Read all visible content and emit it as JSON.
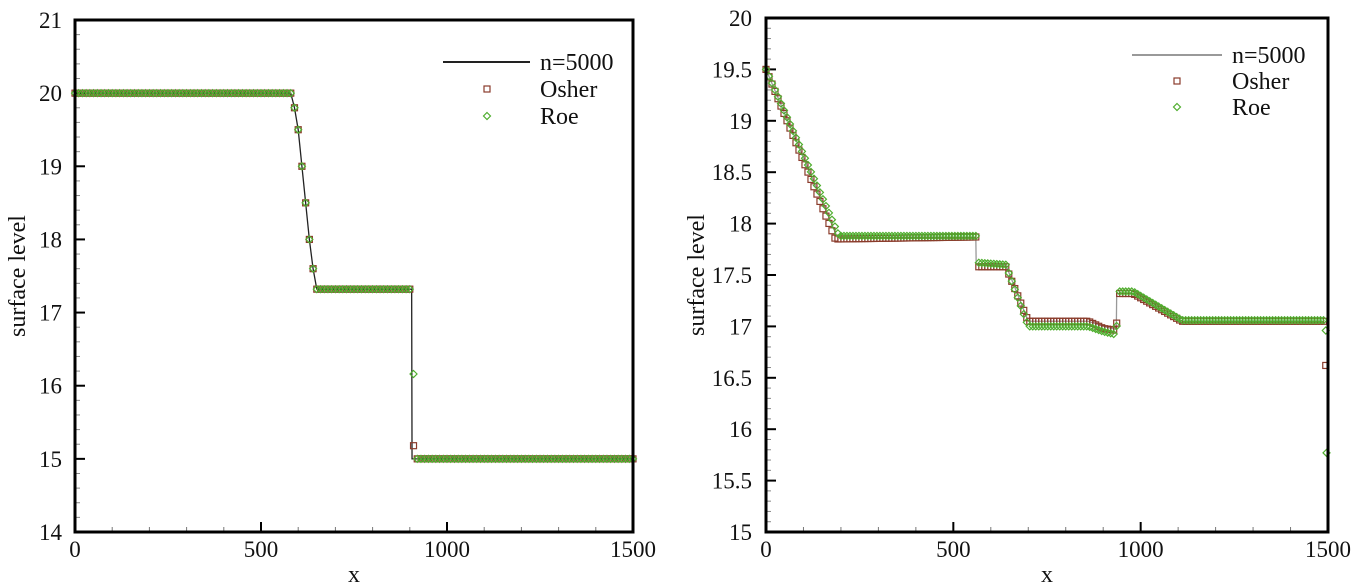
{
  "chart_data": [
    {
      "type": "line",
      "xlabel": "x",
      "ylabel": "surface level",
      "xlim": [
        0,
        1500
      ],
      "ylim": [
        14,
        21
      ],
      "xticks": [
        "0",
        "500",
        "1000",
        "1500"
      ],
      "xtick_values": [
        0,
        500,
        1000,
        1500
      ],
      "yticks": [
        "14",
        "15",
        "16",
        "17",
        "18",
        "19",
        "20",
        "21"
      ],
      "ytick_values": [
        14,
        15,
        16,
        17,
        18,
        19,
        20,
        21
      ],
      "x_minor_step": 100,
      "y_minor_step": 0.2,
      "legend_position": "top-right",
      "line_color": "#222222",
      "marker_spacing": 10,
      "series": [
        {
          "name": "n=5000",
          "kind": "line",
          "color": "#222222",
          "points": [
            [
              0,
              20
            ],
            [
              580,
              20
            ],
            [
              590,
              19.8
            ],
            [
              600,
              19.5
            ],
            [
              610,
              19.0
            ],
            [
              620,
              18.5
            ],
            [
              630,
              18.0
            ],
            [
              640,
              17.6
            ],
            [
              650,
              17.32
            ],
            [
              905,
              17.32
            ],
            [
              906,
              15
            ],
            [
              1500,
              15
            ]
          ]
        },
        {
          "name": "Osher",
          "kind": "square",
          "color": "#8a3b2b",
          "points": [
            [
              0,
              20
            ],
            [
              580,
              20
            ],
            [
              590,
              19.8
            ],
            [
              600,
              19.5
            ],
            [
              610,
              19.0
            ],
            [
              620,
              18.5
            ],
            [
              630,
              18.0
            ],
            [
              640,
              17.6
            ],
            [
              650,
              17.32
            ],
            [
              900,
              17.32
            ],
            [
              905,
              17.18
            ],
            [
              910,
              15.18
            ],
            [
              915,
              15
            ],
            [
              1500,
              15
            ]
          ]
        },
        {
          "name": "Roe",
          "kind": "diamond",
          "color": "#4fae2e",
          "points": [
            [
              0,
              20
            ],
            [
              580,
              20
            ],
            [
              590,
              19.8
            ],
            [
              600,
              19.5
            ],
            [
              610,
              19.0
            ],
            [
              620,
              18.5
            ],
            [
              630,
              18.0
            ],
            [
              640,
              17.6
            ],
            [
              650,
              17.32
            ],
            [
              905,
              17.32
            ],
            [
              915,
              15
            ],
            [
              1500,
              15
            ]
          ]
        }
      ]
    },
    {
      "type": "line",
      "xlabel": "x",
      "ylabel": "surface level",
      "xlim": [
        0,
        1500
      ],
      "ylim": [
        15,
        20
      ],
      "xticks": [
        "0",
        "500",
        "1000",
        "1500"
      ],
      "xtick_values": [
        0,
        500,
        1000,
        1500
      ],
      "yticks": [
        "15",
        "15.5",
        "16",
        "16.5",
        "17",
        "17.5",
        "18",
        "18.5",
        "19",
        "19.5",
        "20"
      ],
      "ytick_values": [
        15,
        15.5,
        16,
        16.5,
        17,
        17.5,
        18,
        18.5,
        19,
        19.5,
        20
      ],
      "x_minor_step": 100,
      "y_minor_step": 0.1,
      "legend_position": "top-right",
      "line_color": "#aaaaaa",
      "marker_spacing": 8,
      "series": [
        {
          "name": "n=5000",
          "kind": "line",
          "color": "#999999",
          "points": [
            [
              0,
              19.5
            ],
            [
              190,
              17.87
            ],
            [
              560,
              17.87
            ],
            [
              561,
              17.6
            ],
            [
              640,
              17.6
            ],
            [
              700,
              17.05
            ],
            [
              860,
              17.05
            ],
            [
              900,
              17.0
            ],
            [
              935,
              16.97
            ],
            [
              936,
              17.32
            ],
            [
              980,
              17.32
            ],
            [
              1110,
              17.05
            ],
            [
              1490,
              17.05
            ]
          ]
        },
        {
          "name": "Osher",
          "kind": "square",
          "color": "#8a3b2b",
          "points": [
            [
              0,
              19.5
            ],
            [
              185,
              17.85
            ],
            [
              560,
              17.87
            ],
            [
              565,
              17.58
            ],
            [
              640,
              17.58
            ],
            [
              700,
              17.05
            ],
            [
              860,
              17.05
            ],
            [
              900,
              16.98
            ],
            [
              935,
              16.96
            ],
            [
              940,
              17.32
            ],
            [
              980,
              17.32
            ],
            [
              1110,
              17.05
            ],
            [
              1490,
              17.05
            ]
          ],
          "outliers": [
            [
              1494,
              16.62
            ]
          ]
        },
        {
          "name": "Roe",
          "kind": "diamond",
          "color": "#4fae2e",
          "points": [
            [
              0,
              19.5
            ],
            [
              195,
              17.88
            ],
            [
              560,
              17.88
            ],
            [
              565,
              17.62
            ],
            [
              640,
              17.6
            ],
            [
              700,
              17.0
            ],
            [
              860,
              17.0
            ],
            [
              900,
              16.95
            ],
            [
              935,
              16.92
            ],
            [
              940,
              17.34
            ],
            [
              980,
              17.34
            ],
            [
              1110,
              17.06
            ],
            [
              1490,
              17.06
            ]
          ],
          "outliers": [
            [
              1494,
              16.96
            ],
            [
              1496,
              15.77
            ]
          ]
        }
      ]
    }
  ]
}
